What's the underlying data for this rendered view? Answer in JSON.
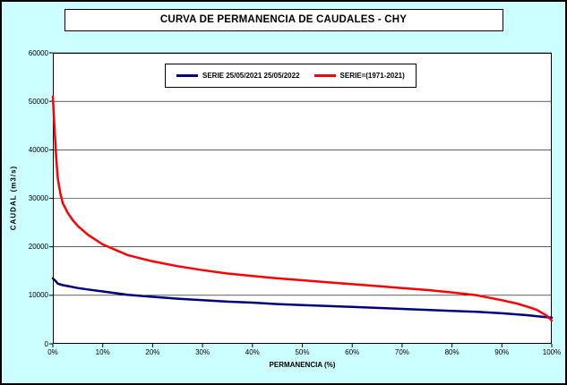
{
  "colors": {
    "background": "#CCFFFF",
    "plot_background": "#FFFFFF",
    "grid": "#000000",
    "series1": "#000080",
    "series2": "#FF0000"
  },
  "chart_data": {
    "type": "line",
    "title": "CURVA DE PERMANENCIA DE CAUDALES - CHY",
    "xlabel": "PERMANENCIA (%)",
    "ylabel": "CAUDAL (m3/s)",
    "xlim": [
      0,
      100
    ],
    "ylim": [
      0,
      60000
    ],
    "grid": "horizontal",
    "legend_position": "top-center",
    "x_tick_labels": [
      "0%",
      "10%",
      "20%",
      "30%",
      "40%",
      "50%",
      "60%",
      "70%",
      "80%",
      "90%",
      "100%"
    ],
    "y_tick_labels": [
      "0",
      "10000",
      "20000",
      "30000",
      "40000",
      "50000",
      "60000"
    ],
    "series": [
      {
        "name": "SERIE 25/05/2021 25/05/2022",
        "color": "#000080",
        "x": [
          0,
          0.5,
          1,
          2,
          3,
          5,
          7,
          10,
          15,
          20,
          25,
          30,
          35,
          40,
          45,
          50,
          55,
          60,
          65,
          70,
          75,
          80,
          85,
          90,
          95,
          98,
          100
        ],
        "y": [
          13500,
          13000,
          12400,
          12100,
          11900,
          11500,
          11200,
          10800,
          10100,
          9700,
          9300,
          9000,
          8700,
          8500,
          8200,
          8000,
          7800,
          7600,
          7400,
          7200,
          7000,
          6800,
          6600,
          6300,
          5900,
          5600,
          5400
        ]
      },
      {
        "name": "SERIE=(1971-2021)",
        "color": "#FF0000",
        "x": [
          0,
          0.3,
          0.7,
          1,
          1.5,
          2,
          3,
          4,
          5,
          7,
          10,
          15,
          20,
          25,
          30,
          35,
          40,
          45,
          50,
          55,
          60,
          65,
          70,
          75,
          80,
          85,
          90,
          93,
          95,
          97,
          99,
          100
        ],
        "y": [
          51000,
          45000,
          38000,
          34000,
          31000,
          29000,
          27000,
          25500,
          24300,
          22500,
          20500,
          18300,
          17000,
          16000,
          15200,
          14500,
          14000,
          13500,
          13100,
          12700,
          12300,
          11900,
          11500,
          11100,
          10600,
          10000,
          9000,
          8300,
          7700,
          7000,
          5800,
          4800
        ]
      }
    ]
  }
}
